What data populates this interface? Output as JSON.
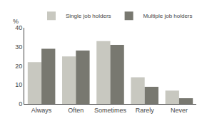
{
  "chart_data": {
    "type": "bar",
    "categories": [
      "Always",
      "Often",
      "Sometimes",
      "Rarely",
      "Never"
    ],
    "series": [
      {
        "name": "Single job holders",
        "color": "#c8c8c0",
        "values": [
          22,
          25,
          33,
          14,
          7
        ]
      },
      {
        "name": "Multiple job holders",
        "color": "#787870",
        "values": [
          29,
          28,
          31,
          9,
          3
        ]
      }
    ],
    "ylabel": "%",
    "ylim": [
      0,
      40
    ],
    "yticks": [
      0,
      10,
      20,
      30,
      40
    ],
    "grid": false,
    "legend": "upper right"
  }
}
